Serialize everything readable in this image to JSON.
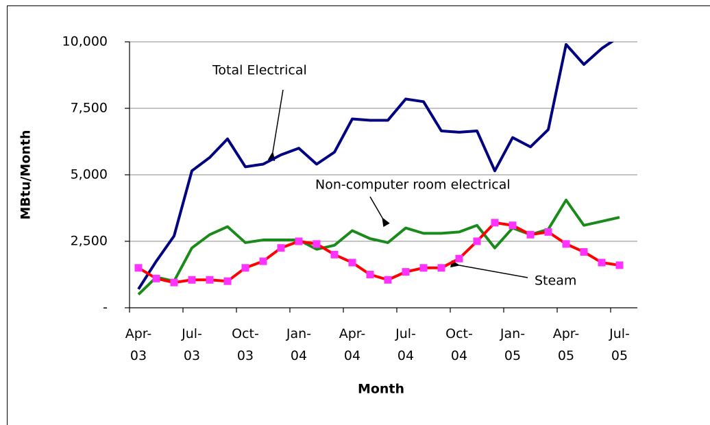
{
  "chart_data": {
    "type": "line",
    "y_label": "MBtu/Month",
    "x_label": "Month",
    "categories": [
      "Apr-03",
      null,
      null,
      "Jul-03",
      null,
      null,
      "Oct-03",
      null,
      null,
      "Jan-04",
      null,
      null,
      "Apr-04",
      null,
      null,
      "Jul-04",
      null,
      null,
      "Oct-04",
      null,
      null,
      "Jan-05",
      null,
      null,
      "Apr-05",
      null,
      null,
      "Jul-05"
    ],
    "series": [
      {
        "name": "Total Electrical",
        "color": "#000080",
        "values": [
          700,
          1750,
          2700,
          5150,
          5650,
          6350,
          5300,
          5400,
          5750,
          6000,
          5400,
          5850,
          7100,
          7050,
          7050,
          7850,
          7750,
          6650,
          6600,
          6650,
          5150,
          6400,
          6050,
          6700,
          9900,
          9150,
          9750,
          10200
        ]
      },
      {
        "name": "Non-computer room electrical",
        "color": "#1a8a1a",
        "values": [
          500,
          1150,
          1000,
          2250,
          2750,
          3050,
          2450,
          2550,
          2550,
          2550,
          2200,
          2350,
          2900,
          2600,
          2450,
          3000,
          2800,
          2800,
          2850,
          3100,
          2250,
          3000,
          2750,
          2950,
          4050,
          3100,
          3250,
          3400
        ]
      },
      {
        "name": "Steam",
        "color": "#ff0000",
        "marker_color": "#ff33ff",
        "values": [
          1500,
          1100,
          950,
          1050,
          1050,
          1000,
          1500,
          1750,
          2250,
          2500,
          2400,
          2000,
          1700,
          1250,
          1050,
          1350,
          1500,
          1500,
          1850,
          2500,
          3200,
          3100,
          2750,
          2850,
          2400,
          2100,
          1700,
          1600
        ]
      }
    ],
    "ylim": [
      0,
      10000
    ],
    "yticks": [
      {
        "value": 0,
        "label": "-"
      },
      {
        "value": 2500,
        "label": "2,500"
      },
      {
        "value": 5000,
        "label": "5,000"
      },
      {
        "value": 7500,
        "label": "7,500"
      },
      {
        "value": 10000,
        "label": "10,000"
      }
    ],
    "grid": true
  }
}
